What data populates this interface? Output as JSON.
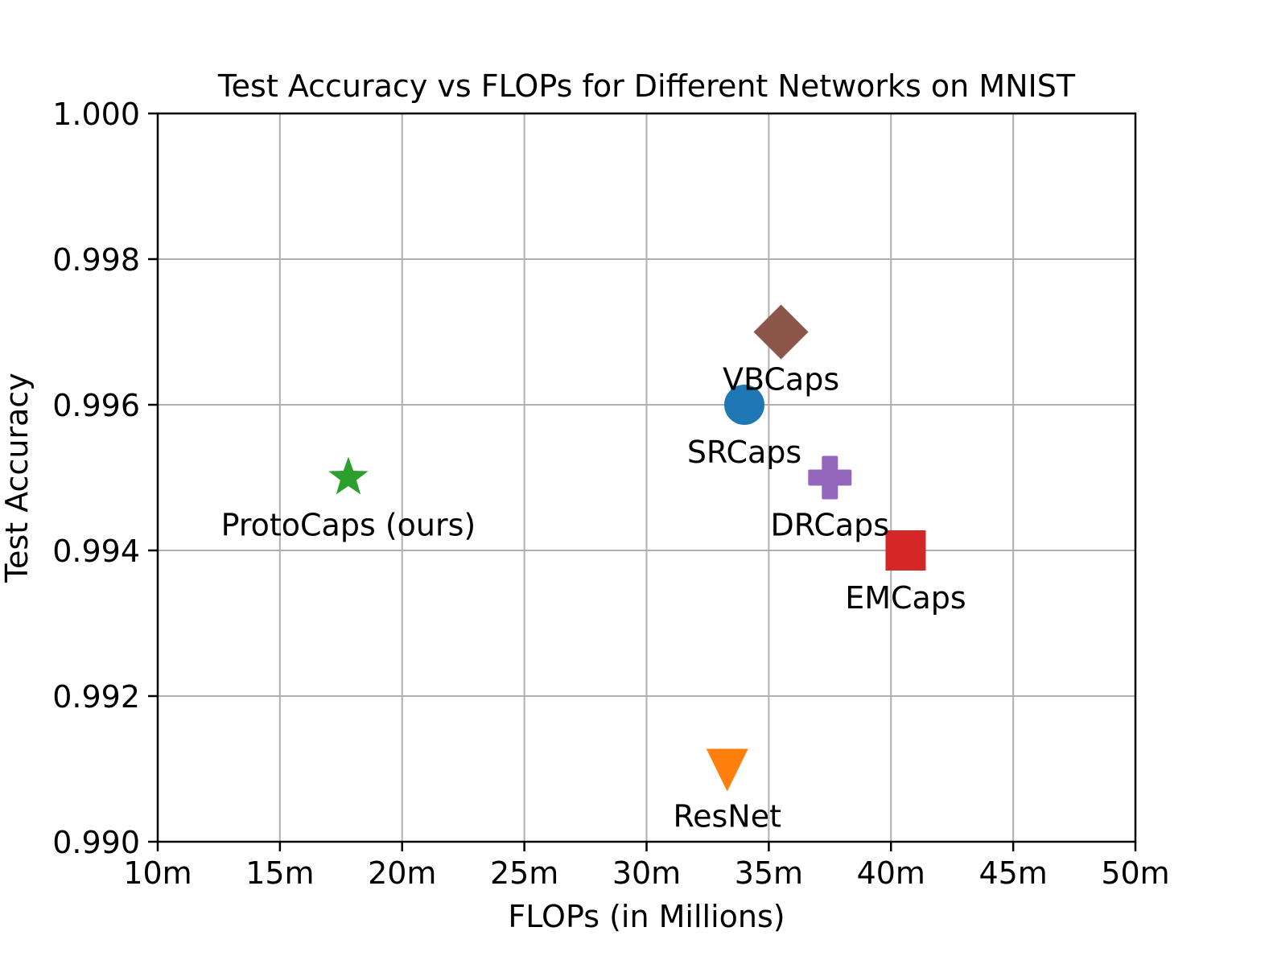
{
  "chart_data": {
    "type": "scatter",
    "title": "Test Accuracy vs FLOPs for Different Networks on MNIST",
    "xlabel": "FLOPs (in Millions)",
    "ylabel": "Test Accuracy",
    "xlim": [
      10,
      50
    ],
    "ylim": [
      0.99,
      1.0
    ],
    "x_ticks": [
      10,
      15,
      20,
      25,
      30,
      35,
      40,
      45,
      50
    ],
    "x_tick_labels": [
      "10m",
      "15m",
      "20m",
      "25m",
      "30m",
      "35m",
      "40m",
      "45m",
      "50m"
    ],
    "y_ticks": [
      0.99,
      0.992,
      0.994,
      0.996,
      0.998,
      1.0
    ],
    "y_tick_labels": [
      "0.990",
      "0.992",
      "0.994",
      "0.996",
      "0.998",
      "1.000"
    ],
    "grid": true,
    "points": [
      {
        "label": "ProtoCaps (ours)",
        "x": 17.8,
        "y": 0.995,
        "marker": "star",
        "color": "#2ca02c"
      },
      {
        "label": "ResNet",
        "x": 33.3,
        "y": 0.991,
        "marker": "triangle-down",
        "color": "#ff7f0e"
      },
      {
        "label": "SRCaps",
        "x": 34.0,
        "y": 0.996,
        "marker": "circle",
        "color": "#1f77b4"
      },
      {
        "label": "VBCaps",
        "x": 35.5,
        "y": 0.997,
        "marker": "diamond",
        "color": "#8c564b"
      },
      {
        "label": "DRCaps",
        "x": 37.5,
        "y": 0.995,
        "marker": "plus",
        "color": "#9467bd"
      },
      {
        "label": "EMCaps",
        "x": 40.6,
        "y": 0.994,
        "marker": "square",
        "color": "#d62728"
      }
    ]
  }
}
